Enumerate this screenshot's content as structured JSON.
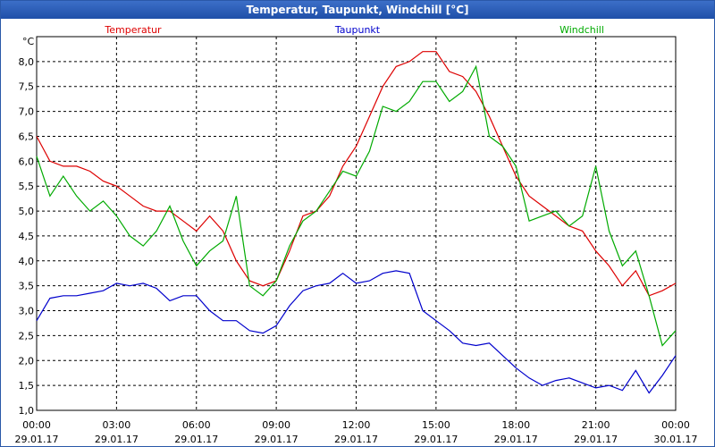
{
  "chart_data": {
    "type": "line",
    "title": "Temperatur, Taupunkt, Windchill [°C]",
    "ylabel": "°C",
    "xlabel": "",
    "ylim": [
      1.0,
      8.5
    ],
    "xlim": [
      0,
      24
    ],
    "grid": true,
    "legend_position": "top",
    "y_ticks": [
      "1,0",
      "1,5",
      "2,0",
      "2,5",
      "3,0",
      "3,5",
      "4,0",
      "4,5",
      "5,0",
      "5,5",
      "6,0",
      "6,5",
      "7,0",
      "7,5",
      "8,0"
    ],
    "x_ticks": [
      {
        "time": "00:00",
        "date": "29.01.17"
      },
      {
        "time": "03:00",
        "date": "29.01.17"
      },
      {
        "time": "06:00",
        "date": "29.01.17"
      },
      {
        "time": "09:00",
        "date": "29.01.17"
      },
      {
        "time": "12:00",
        "date": "29.01.17"
      },
      {
        "time": "15:00",
        "date": "29.01.17"
      },
      {
        "time": "18:00",
        "date": "29.01.17"
      },
      {
        "time": "21:00",
        "date": "29.01.17"
      },
      {
        "time": "00:00",
        "date": "30.01.17"
      }
    ],
    "series": [
      {
        "name": "Temperatur",
        "color": "#dd0000",
        "x": [
          0,
          0.5,
          1,
          1.5,
          2,
          2.5,
          3,
          3.5,
          4,
          4.5,
          5,
          5.5,
          6,
          6.5,
          7,
          7.5,
          8,
          8.5,
          9,
          9.5,
          10,
          10.5,
          11,
          11.5,
          12,
          12.5,
          13,
          13.5,
          14,
          14.5,
          15,
          15.5,
          16,
          16.5,
          17,
          17.5,
          18,
          18.5,
          19,
          19.5,
          20,
          20.5,
          21,
          21.5,
          22,
          22.5,
          23,
          23.5,
          24
        ],
        "values": [
          6.5,
          6.0,
          5.9,
          5.9,
          5.8,
          5.6,
          5.5,
          5.3,
          5.1,
          5.0,
          5.0,
          4.8,
          4.6,
          4.9,
          4.6,
          4.0,
          3.6,
          3.5,
          3.6,
          4.2,
          4.9,
          5.0,
          5.3,
          5.9,
          6.3,
          6.9,
          7.5,
          7.9,
          8.0,
          8.2,
          8.2,
          7.8,
          7.7,
          7.4,
          6.9,
          6.3,
          5.7,
          5.3,
          5.1,
          4.9,
          4.7,
          4.6,
          4.2,
          3.9,
          3.5,
          3.8,
          3.3,
          3.4,
          3.55
        ]
      },
      {
        "name": "Taupunkt",
        "color": "#0000cc",
        "x": [
          0,
          0.5,
          1,
          1.5,
          2,
          2.5,
          3,
          3.5,
          4,
          4.5,
          5,
          5.5,
          6,
          6.5,
          7,
          7.5,
          8,
          8.5,
          9,
          9.5,
          10,
          10.5,
          11,
          11.5,
          12,
          12.5,
          13,
          13.5,
          14,
          14.5,
          15,
          15.5,
          16,
          16.5,
          17,
          17.5,
          18,
          18.5,
          19,
          19.5,
          20,
          20.5,
          21,
          21.5,
          22,
          22.5,
          23,
          23.5,
          24
        ],
        "values": [
          2.8,
          3.25,
          3.3,
          3.3,
          3.35,
          3.4,
          3.55,
          3.5,
          3.55,
          3.45,
          3.2,
          3.3,
          3.3,
          3.0,
          2.8,
          2.8,
          2.6,
          2.55,
          2.7,
          3.1,
          3.4,
          3.5,
          3.55,
          3.75,
          3.55,
          3.6,
          3.75,
          3.8,
          3.75,
          3.0,
          2.8,
          2.6,
          2.35,
          2.3,
          2.35,
          2.1,
          1.85,
          1.65,
          1.5,
          1.6,
          1.65,
          1.55,
          1.45,
          1.5,
          1.4,
          1.8,
          1.35,
          1.7,
          2.1
        ]
      },
      {
        "name": "Windchill",
        "color": "#00aa00",
        "x": [
          0,
          0.5,
          1,
          1.5,
          2,
          2.5,
          3,
          3.5,
          4,
          4.5,
          5,
          5.5,
          6,
          6.5,
          7,
          7.5,
          8,
          8.5,
          9,
          9.5,
          10,
          10.5,
          11,
          11.5,
          12,
          12.5,
          13,
          13.5,
          14,
          14.5,
          15,
          15.5,
          16,
          16.5,
          17,
          17.5,
          18,
          18.5,
          19,
          19.5,
          20,
          20.5,
          21,
          21.5,
          22,
          22.5,
          23,
          23.5,
          24
        ],
        "values": [
          6.1,
          5.3,
          5.7,
          5.3,
          5.0,
          5.2,
          4.9,
          4.5,
          4.3,
          4.6,
          5.1,
          4.4,
          3.9,
          4.2,
          4.4,
          5.3,
          3.5,
          3.3,
          3.6,
          4.3,
          4.8,
          5.0,
          5.4,
          5.8,
          5.7,
          6.2,
          7.1,
          7.0,
          7.2,
          7.6,
          7.6,
          7.2,
          7.4,
          7.9,
          6.5,
          6.3,
          5.9,
          4.8,
          4.9,
          5.0,
          4.7,
          4.9,
          5.9,
          4.6,
          3.9,
          4.2,
          3.3,
          2.3,
          2.6
        ]
      }
    ]
  }
}
